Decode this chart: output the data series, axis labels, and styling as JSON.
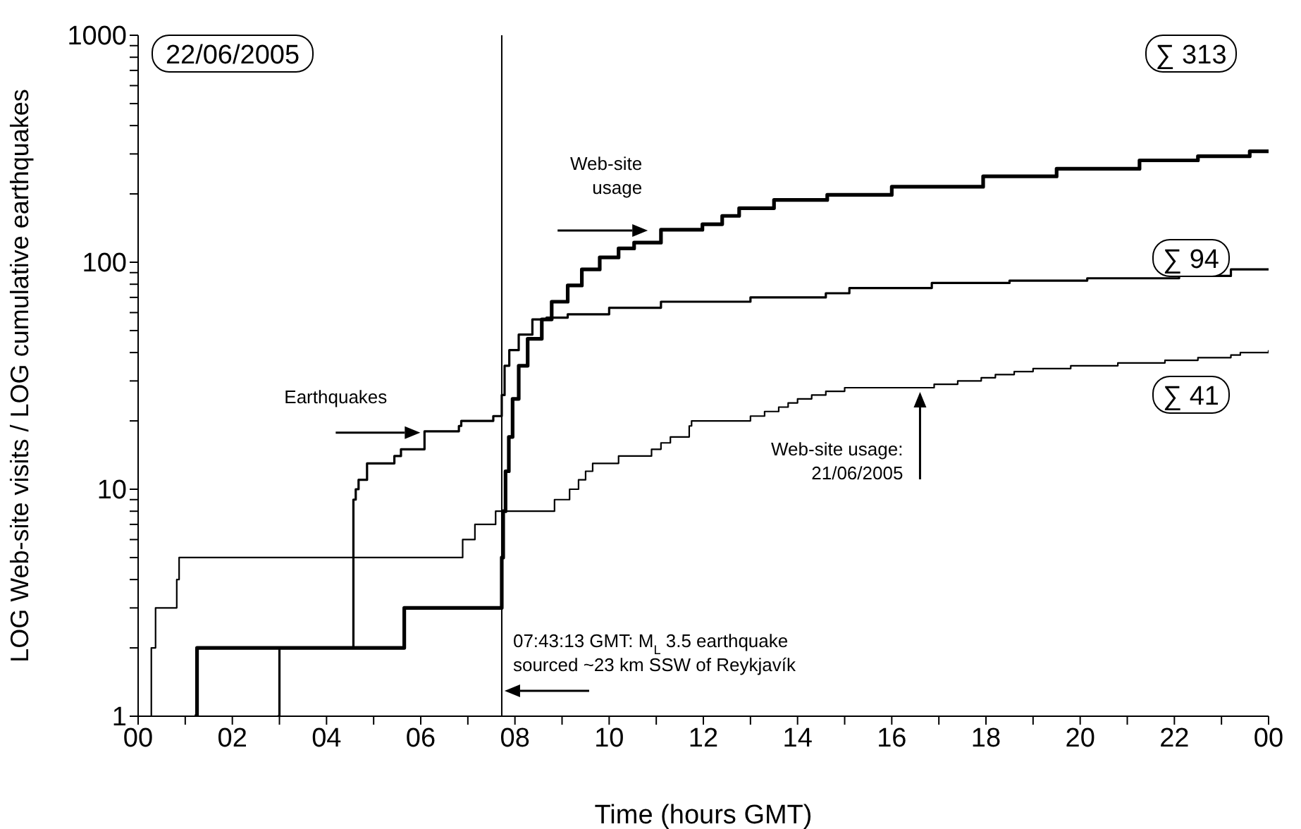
{
  "chart_data": {
    "type": "step",
    "xlabel": "Time (hours GMT)",
    "ylabel": "LOG Web-site visits / LOG cumulative earthquakes",
    "xlim": [
      0,
      24
    ],
    "xticks": [
      {
        "value": 0,
        "label": "00"
      },
      {
        "value": 1,
        "label": null
      },
      {
        "value": 2,
        "label": "02"
      },
      {
        "value": 3,
        "label": null
      },
      {
        "value": 4,
        "label": "04"
      },
      {
        "value": 5,
        "label": null
      },
      {
        "value": 6,
        "label": "06"
      },
      {
        "value": 7,
        "label": null
      },
      {
        "value": 8,
        "label": "08"
      },
      {
        "value": 9,
        "label": null
      },
      {
        "value": 10,
        "label": "10"
      },
      {
        "value": 11,
        "label": null
      },
      {
        "value": 12,
        "label": "12"
      },
      {
        "value": 13,
        "label": null
      },
      {
        "value": 14,
        "label": "14"
      },
      {
        "value": 15,
        "label": null
      },
      {
        "value": 16,
        "label": "16"
      },
      {
        "value": 17,
        "label": null
      },
      {
        "value": 18,
        "label": "18"
      },
      {
        "value": 19,
        "label": null
      },
      {
        "value": 20,
        "label": "20"
      },
      {
        "value": 21,
        "label": null
      },
      {
        "value": 22,
        "label": "22"
      },
      {
        "value": 23,
        "label": null
      },
      {
        "value": 24,
        "label": "00"
      }
    ],
    "ylim": [
      1,
      1000
    ],
    "log": true,
    "yticks": [
      1,
      {
        "value": 2,
        "label": null
      },
      {
        "value": 3,
        "label": null
      },
      {
        "value": 4,
        "label": null
      },
      {
        "value": 5,
        "label": null
      },
      {
        "value": 6,
        "label": null
      },
      {
        "value": 7,
        "label": null
      },
      {
        "value": 8,
        "label": null
      },
      {
        "value": 9,
        "label": null
      },
      10,
      {
        "value": 20,
        "label": null
      },
      {
        "value": 30,
        "label": null
      },
      {
        "value": 40,
        "label": null
      },
      {
        "value": 50,
        "label": null
      },
      {
        "value": 60,
        "label": null
      },
      {
        "value": 70,
        "label": null
      },
      {
        "value": 80,
        "label": null
      },
      {
        "value": 90,
        "label": null
      },
      100,
      {
        "value": 200,
        "label": null
      },
      {
        "value": 300,
        "label": null
      },
      {
        "value": 400,
        "label": null
      },
      {
        "value": 500,
        "label": null
      },
      {
        "value": 600,
        "label": null
      },
      {
        "value": 700,
        "label": null
      },
      {
        "value": 800,
        "label": null
      },
      {
        "value": 900,
        "label": null
      },
      1000
    ],
    "marker": "none",
    "line_style": "solid",
    "series": [
      {
        "color": "#000000",
        "x": [
          1.2,
          1.25,
          5.65,
          7.72,
          7.75,
          7.8,
          7.87,
          7.95,
          8.08,
          8.27,
          8.57,
          8.78,
          9.12,
          9.42,
          9.8,
          10.2,
          10.53,
          11.1,
          11.98,
          12.4,
          12.76,
          13.5,
          14.63,
          16.0,
          17.94,
          19.5,
          21.26,
          22.5,
          23.6,
          24
        ],
        "values": [
          1,
          2,
          3,
          5,
          8,
          12,
          17,
          25,
          35,
          46,
          56,
          67,
          79,
          93,
          105,
          115,
          122,
          139,
          147,
          160,
          173,
          188,
          198,
          215,
          239,
          258,
          281,
          293,
          308,
          313
        ]
      },
      {
        "color": "#000000",
        "x": [
          2.96,
          3.0,
          4.57,
          4.62,
          4.68,
          4.86,
          5.44,
          5.58,
          6.08,
          6.81,
          6.86,
          7.54,
          7.72,
          7.78,
          7.88,
          8.08,
          8.37,
          8.67,
          9.12,
          10.0,
          11.1,
          13.0,
          14.6,
          15.1,
          16.85,
          18.5,
          20.15,
          22.1,
          23.2,
          24
        ],
        "values": [
          1,
          2,
          9,
          10,
          11,
          13,
          14,
          15,
          18,
          19,
          20,
          21,
          26,
          35,
          41,
          48,
          56,
          57,
          59,
          63,
          67,
          70,
          73,
          77,
          81,
          83,
          85,
          87,
          93,
          94
        ]
      },
      {
        "color": "#000000",
        "x": [
          0.27,
          0.28,
          0.37,
          0.82,
          0.87,
          6.89,
          7.15,
          7.59,
          8.84,
          9.16,
          9.35,
          9.5,
          9.65,
          10.2,
          10.9,
          11.1,
          11.3,
          11.7,
          11.75,
          13.0,
          13.3,
          13.6,
          13.8,
          14.0,
          14.3,
          14.6,
          15.0,
          16.9,
          17.4,
          17.9,
          18.2,
          18.6,
          19.0,
          19.8,
          20.8,
          21.8,
          22.5,
          23.2,
          23.4,
          24
        ],
        "values": [
          1,
          2,
          3,
          4,
          5,
          6,
          7,
          8,
          9,
          10,
          11,
          12,
          13,
          14,
          15,
          16,
          17,
          19,
          20,
          21,
          22,
          23,
          24,
          25,
          26,
          27,
          28,
          29,
          30,
          31,
          32,
          33,
          34,
          35,
          36,
          37,
          38,
          39,
          40,
          41
        ]
      }
    ],
    "ref_lines": [
      {
        "axis": "x",
        "value": 7.72,
        "color": "#000000"
      }
    ],
    "annotations": [
      "22/06/2005",
      "∑ 313",
      "∑ 94",
      "∑ 41",
      {
        "text": "Earthquakes",
        "x": 6.05,
        "y": 18
      },
      {
        "text": "Web-site\nusage",
        "x": 11.0,
        "y": 140
      },
      {
        "text": "Web-site usage:\n21/06/2005",
        "x": 16.6,
        "y": 28
      },
      {
        "text": "07:43:13 GMT: M$_{L}$ 3.5 earthquake\nsourced ~23 km SSW of Reykjavík",
        "x": 7.72,
        "y": 1.35
      }
    ]
  }
}
